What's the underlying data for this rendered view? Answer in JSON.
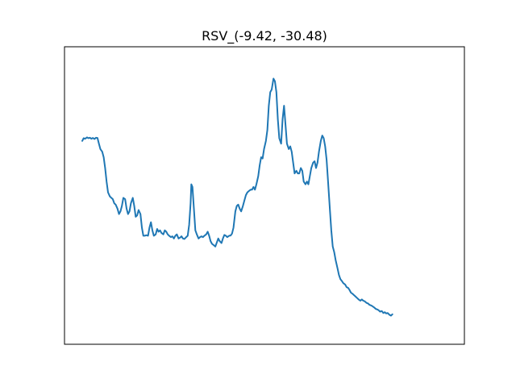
{
  "chart_data": {
    "type": "line",
    "title": "RSV_(-9.42, -30.48)",
    "xlabel": "",
    "ylabel": "",
    "x_ticks_visible": false,
    "y_ticks_visible": false,
    "grid": false,
    "xlim": [
      0,
      100
    ],
    "ylim": [
      0,
      100
    ],
    "series": [
      {
        "color": "#1f77b4",
        "points": [
          [
            0,
            70
          ],
          [
            0.4,
            71
          ],
          [
            0.8,
            70.8
          ],
          [
            1.3,
            71.3
          ],
          [
            1.7,
            71
          ],
          [
            2.1,
            71.2
          ],
          [
            2.5,
            70.8
          ],
          [
            2.9,
            71.1
          ],
          [
            3.4,
            70.7
          ],
          [
            3.8,
            71.2
          ],
          [
            4.2,
            71.1
          ],
          [
            4.6,
            69
          ],
          [
            5,
            67
          ],
          [
            5.5,
            66
          ],
          [
            5.9,
            64
          ],
          [
            6.3,
            60
          ],
          [
            6.7,
            55
          ],
          [
            7.1,
            51
          ],
          [
            7.6,
            49.5
          ],
          [
            8,
            49
          ],
          [
            8.4,
            48.5
          ],
          [
            8.8,
            47
          ],
          [
            9.2,
            46.5
          ],
          [
            9.7,
            45
          ],
          [
            10.1,
            43
          ],
          [
            10.5,
            44
          ],
          [
            10.9,
            46
          ],
          [
            11.3,
            49
          ],
          [
            11.8,
            48.5
          ],
          [
            12.2,
            45
          ],
          [
            12.6,
            43
          ],
          [
            13,
            44
          ],
          [
            13.4,
            47
          ],
          [
            13.9,
            49
          ],
          [
            14.3,
            46
          ],
          [
            14.7,
            42
          ],
          [
            15.1,
            42.5
          ],
          [
            15.5,
            44.5
          ],
          [
            16,
            43
          ],
          [
            16.4,
            38
          ],
          [
            16.8,
            35
          ],
          [
            17.2,
            35
          ],
          [
            17.6,
            35.2
          ],
          [
            18.1,
            35
          ],
          [
            18.5,
            38
          ],
          [
            18.9,
            40
          ],
          [
            19.3,
            37
          ],
          [
            19.7,
            35
          ],
          [
            20.2,
            35.5
          ],
          [
            20.6,
            37.5
          ],
          [
            21,
            36.5
          ],
          [
            21.4,
            37
          ],
          [
            21.8,
            36
          ],
          [
            22.3,
            35.5
          ],
          [
            22.7,
            37
          ],
          [
            23.1,
            36.5
          ],
          [
            23.5,
            35.5
          ],
          [
            23.9,
            35
          ],
          [
            24.4,
            34.5
          ],
          [
            24.8,
            34.8
          ],
          [
            25.2,
            34
          ],
          [
            25.6,
            35
          ],
          [
            26,
            35.5
          ],
          [
            26.5,
            34
          ],
          [
            26.9,
            34.3
          ],
          [
            27.3,
            34.8
          ],
          [
            27.7,
            34
          ],
          [
            28.1,
            33.8
          ],
          [
            28.6,
            34.5
          ],
          [
            29,
            35
          ],
          [
            29.4,
            39
          ],
          [
            29.8,
            47
          ],
          [
            30,
            54
          ],
          [
            30.3,
            53
          ],
          [
            30.7,
            45
          ],
          [
            31.1,
            37
          ],
          [
            31.5,
            35.5
          ],
          [
            32,
            34
          ],
          [
            32.4,
            34.5
          ],
          [
            32.8,
            34.8
          ],
          [
            33.2,
            34.5
          ],
          [
            33.6,
            35
          ],
          [
            34.1,
            35.5
          ],
          [
            34.5,
            36.5
          ],
          [
            34.9,
            35
          ],
          [
            35.3,
            33
          ],
          [
            35.7,
            32
          ],
          [
            36.2,
            31.5
          ],
          [
            36.6,
            31
          ],
          [
            37,
            32.5
          ],
          [
            37.4,
            34
          ],
          [
            37.8,
            33
          ],
          [
            38.3,
            32.3
          ],
          [
            38.7,
            34
          ],
          [
            39.1,
            35.3
          ],
          [
            39.5,
            35
          ],
          [
            39.9,
            34.5
          ],
          [
            40.4,
            35
          ],
          [
            40.8,
            35.1
          ],
          [
            41.2,
            35.8
          ],
          [
            41.6,
            38
          ],
          [
            42.1,
            44
          ],
          [
            42.5,
            46
          ],
          [
            42.9,
            46.5
          ],
          [
            43.3,
            45
          ],
          [
            43.7,
            44
          ],
          [
            44.2,
            46
          ],
          [
            44.6,
            48
          ],
          [
            45,
            50
          ],
          [
            45.4,
            51
          ],
          [
            45.8,
            51.5
          ],
          [
            46.3,
            52
          ],
          [
            46.7,
            52
          ],
          [
            47.1,
            53
          ],
          [
            47.5,
            52
          ],
          [
            47.9,
            54
          ],
          [
            48.4,
            57
          ],
          [
            48.8,
            61
          ],
          [
            49.2,
            64
          ],
          [
            49.6,
            63.5
          ],
          [
            50,
            67
          ],
          [
            50.5,
            70
          ],
          [
            50.9,
            74
          ],
          [
            51.3,
            83
          ],
          [
            51.7,
            88
          ],
          [
            52.1,
            89
          ],
          [
            52.6,
            93
          ],
          [
            53,
            92
          ],
          [
            53.4,
            88
          ],
          [
            53.8,
            78
          ],
          [
            54.2,
            71
          ],
          [
            54.7,
            69
          ],
          [
            55.1,
            78
          ],
          [
            55.5,
            83
          ],
          [
            55.9,
            76
          ],
          [
            56.3,
            69
          ],
          [
            56.8,
            67
          ],
          [
            57.2,
            68
          ],
          [
            57.6,
            66
          ],
          [
            58,
            62
          ],
          [
            58.4,
            58
          ],
          [
            58.9,
            59
          ],
          [
            59.3,
            58
          ],
          [
            59.7,
            58
          ],
          [
            60.1,
            60
          ],
          [
            60.5,
            59
          ],
          [
            60.9,
            55
          ],
          [
            61.4,
            54
          ],
          [
            61.8,
            55
          ],
          [
            62.2,
            54
          ],
          [
            62.6,
            57
          ],
          [
            63,
            60
          ],
          [
            63.5,
            62
          ],
          [
            63.9,
            62.5
          ],
          [
            64.3,
            60
          ],
          [
            64.7,
            62
          ],
          [
            65.1,
            66
          ],
          [
            65.6,
            70
          ],
          [
            66,
            72
          ],
          [
            66.4,
            71
          ],
          [
            66.8,
            68
          ],
          [
            67.2,
            63
          ],
          [
            67.6,
            55
          ],
          [
            68.1,
            45
          ],
          [
            68.5,
            37
          ],
          [
            68.9,
            31
          ],
          [
            69.3,
            29
          ],
          [
            69.7,
            26
          ],
          [
            70.2,
            23
          ],
          [
            70.6,
            20.5
          ],
          [
            71,
            19
          ],
          [
            71.4,
            18.3
          ],
          [
            71.8,
            17.5
          ],
          [
            72.3,
            17
          ],
          [
            72.7,
            16
          ],
          [
            73.1,
            15.8
          ],
          [
            73.5,
            15
          ],
          [
            73.9,
            14
          ],
          [
            74.4,
            13.5
          ],
          [
            74.8,
            13
          ],
          [
            75.2,
            12.5
          ],
          [
            75.6,
            12
          ],
          [
            76,
            11.5
          ],
          [
            76.5,
            11
          ],
          [
            76.9,
            11.5
          ],
          [
            77.3,
            11
          ],
          [
            77.7,
            10.8
          ],
          [
            78.2,
            10.2
          ],
          [
            78.6,
            10
          ],
          [
            79,
            9.5
          ],
          [
            79.4,
            9.3
          ],
          [
            79.8,
            9
          ],
          [
            80.3,
            8.5
          ],
          [
            80.7,
            8
          ],
          [
            81.1,
            7.8
          ],
          [
            81.5,
            7.5
          ],
          [
            81.9,
            7
          ],
          [
            82.4,
            7.2
          ],
          [
            82.8,
            6.5
          ],
          [
            83.2,
            6.8
          ],
          [
            83.6,
            6.3
          ],
          [
            84,
            6.5
          ],
          [
            84.5,
            5.8
          ],
          [
            84.9,
            5.5
          ],
          [
            85.3,
            6
          ]
        ]
      }
    ]
  }
}
